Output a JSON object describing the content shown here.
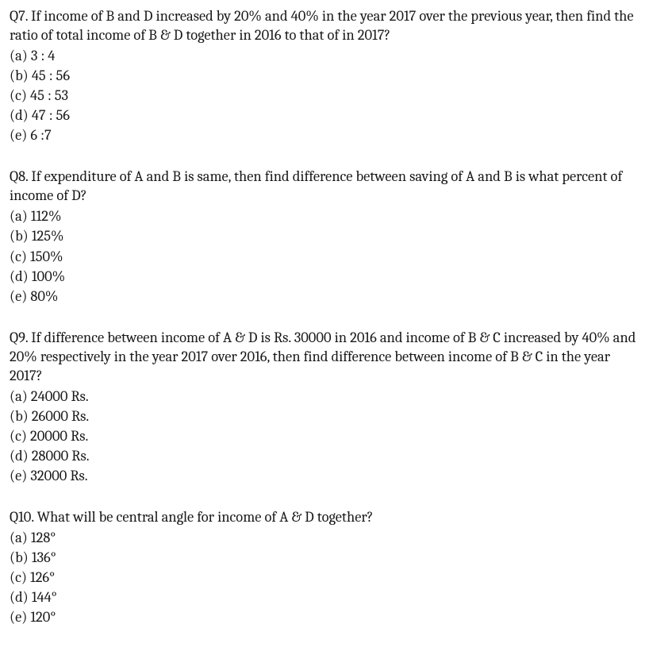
{
  "text_color": "#1a1a1a",
  "background_color": "#ffffff",
  "font_family": "Cambria, Georgia, serif",
  "font_size_pt": 14,
  "questions": [
    {
      "prompt": "Q7. If income of B and D increased by 20% and 40% in the year 2017 over the previous year, then find the ratio of total income of B & D together in 2016 to that of in 2017?",
      "options": {
        "a": "(a) 3 : 4",
        "b": "(b) 45 : 56",
        "c": "(c) 45 : 53",
        "d": "(d) 47 : 56",
        "e": "(e) 6 :7"
      }
    },
    {
      "prompt": "Q8. If expenditure of A and B is same, then find difference between saving of A and B is what percent of income of D?",
      "options": {
        "a": "(a) 112%",
        "b": "(b) 125%",
        "c": "(c) 150%",
        "d": "(d) 100%",
        "e": "(e) 80%"
      }
    },
    {
      "prompt": "Q9.  If difference between income of A & D is Rs. 30000 in 2016 and income of B & C increased by 40% and 20% respectively in the year 2017 over 2016, then find difference between income of B & C in the year 2017?",
      "options": {
        "a": "(a) 24000 Rs.",
        "b": "(b) 26000 Rs.",
        "c": "(c) 20000 Rs.",
        "d": "(d) 28000 Rs.",
        "e": "(e) 32000 Rs."
      }
    },
    {
      "prompt": "Q10.  What will be central angle for income of A & D together?",
      "options": {
        "a": "(a) 128°",
        "b": "(b) 136°",
        "c": "(c) 126°",
        "d": "(d) 144°",
        "e": "(e) 120°"
      }
    }
  ]
}
